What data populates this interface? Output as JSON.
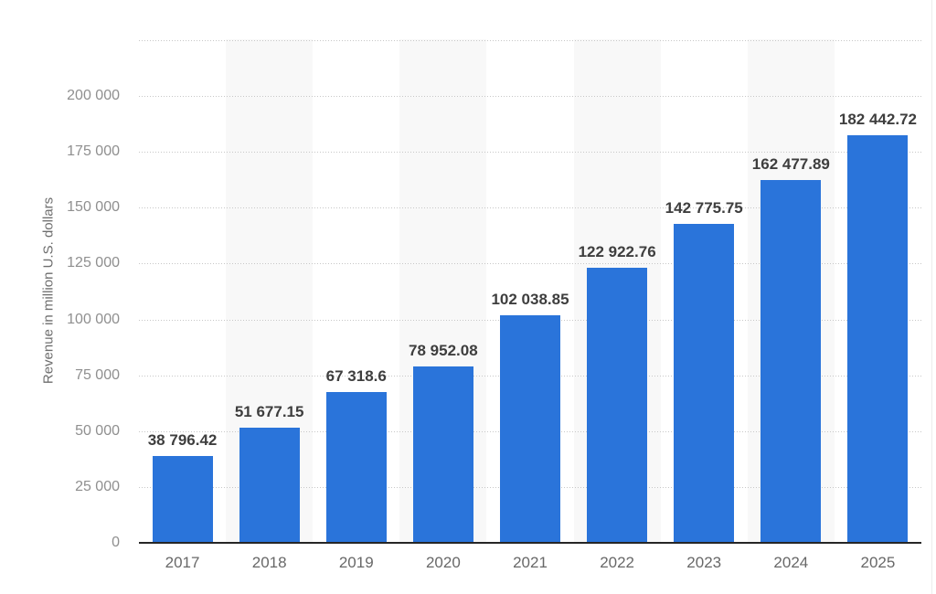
{
  "chart_data": {
    "type": "bar",
    "title": "",
    "xlabel": "",
    "ylabel": "Revenue in million U.S. dollars",
    "categories": [
      "2017",
      "2018",
      "2019",
      "2020",
      "2021",
      "2022",
      "2023",
      "2024",
      "2025"
    ],
    "values": [
      38796.42,
      51677.15,
      67318.6,
      78952.08,
      102038.85,
      122922.76,
      142775.75,
      162477.89,
      182442.72
    ],
    "value_labels": [
      "38 796.42",
      "51 677.15",
      "67 318.6",
      "78 952.08",
      "102 038.85",
      "122 922.76",
      "142 775.75",
      "162 477.89",
      "182 442.72"
    ],
    "ylim": [
      0,
      225000
    ],
    "ytick_interval": 25000,
    "ytick_labels": [
      "0",
      "25 000",
      "50 000",
      "75 000",
      "100 000",
      "125 000",
      "150 000",
      "175 000",
      "200 000"
    ],
    "grid": "horizontal dotted gridlines, alternating vertical column bands",
    "legend_position": "none",
    "colors": {
      "bar": "#2a74da",
      "band": "#f8f8f8",
      "gridline": "#c7c7c7",
      "axis_line": "#262626",
      "value_label_text": "#3e3e3e",
      "x_tick_text": "#686868",
      "y_tick_text": "#8f8f8f",
      "y_axis_title_text": "#6e6e6e",
      "background": "#ffffff"
    },
    "banded_categories": [
      "2018",
      "2020",
      "2022",
      "2024"
    ]
  }
}
